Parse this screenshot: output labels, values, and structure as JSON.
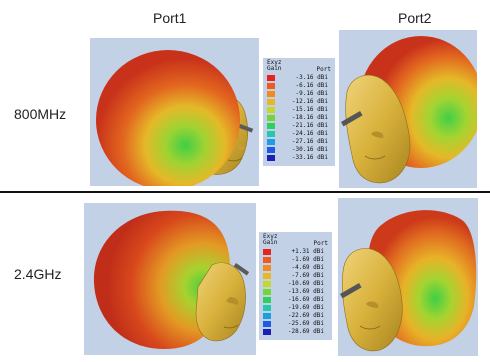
{
  "columns": [
    "Port1",
    "Port2"
  ],
  "rows": [
    "800MHz",
    "2.4GHz"
  ],
  "legend_top": {
    "title": "Exyz",
    "label": "Gain",
    "port_label": "Port",
    "entries": [
      {
        "value": "-3.16 dBi",
        "color": "#e8231c"
      },
      {
        "value": "-6.16 dBi",
        "color": "#ee5a1f"
      },
      {
        "value": "-9.16 dBi",
        "color": "#f08a22"
      },
      {
        "value": "-12.16 dBi",
        "color": "#e9b626"
      },
      {
        "value": "-15.16 dBi",
        "color": "#c3d82a"
      },
      {
        "value": "-18.16 dBi",
        "color": "#74d636"
      },
      {
        "value": "-21.16 dBi",
        "color": "#2fcf5e"
      },
      {
        "value": "-24.16 dBi",
        "color": "#22c8b0"
      },
      {
        "value": "-27.16 dBi",
        "color": "#1e9de0"
      },
      {
        "value": "-30.16 dBi",
        "color": "#1d5be6"
      },
      {
        "value": "-33.16 dBi",
        "color": "#1a1fb8"
      }
    ]
  },
  "legend_bottom": {
    "title": "Exyz",
    "label": "Gain",
    "port_label": "Port",
    "entries": [
      {
        "value": "+1.31 dBi",
        "color": "#e8231c"
      },
      {
        "value": "-1.69 dBi",
        "color": "#ee5a1f"
      },
      {
        "value": "-4.69 dBi",
        "color": "#f08a22"
      },
      {
        "value": "-7.69 dBi",
        "color": "#e9b626"
      },
      {
        "value": "-10.69 dBi",
        "color": "#c3d82a"
      },
      {
        "value": "-13.69 dBi",
        "color": "#74d636"
      },
      {
        "value": "-16.69 dBi",
        "color": "#2fcf5e"
      },
      {
        "value": "-19.69 dBi",
        "color": "#22c8b0"
      },
      {
        "value": "-22.69 dBi",
        "color": "#1e9de0"
      },
      {
        "value": "-25.69 dBi",
        "color": "#1d5be6"
      },
      {
        "value": "-28.69 dBi",
        "color": "#1a1fb8"
      }
    ]
  },
  "colors": {
    "panel_background": "#c3d1e6",
    "head": "#d9b23c",
    "pattern_high": "#d23a1c",
    "pattern_mid": "#e6a425",
    "pattern_low": "#57c436"
  }
}
